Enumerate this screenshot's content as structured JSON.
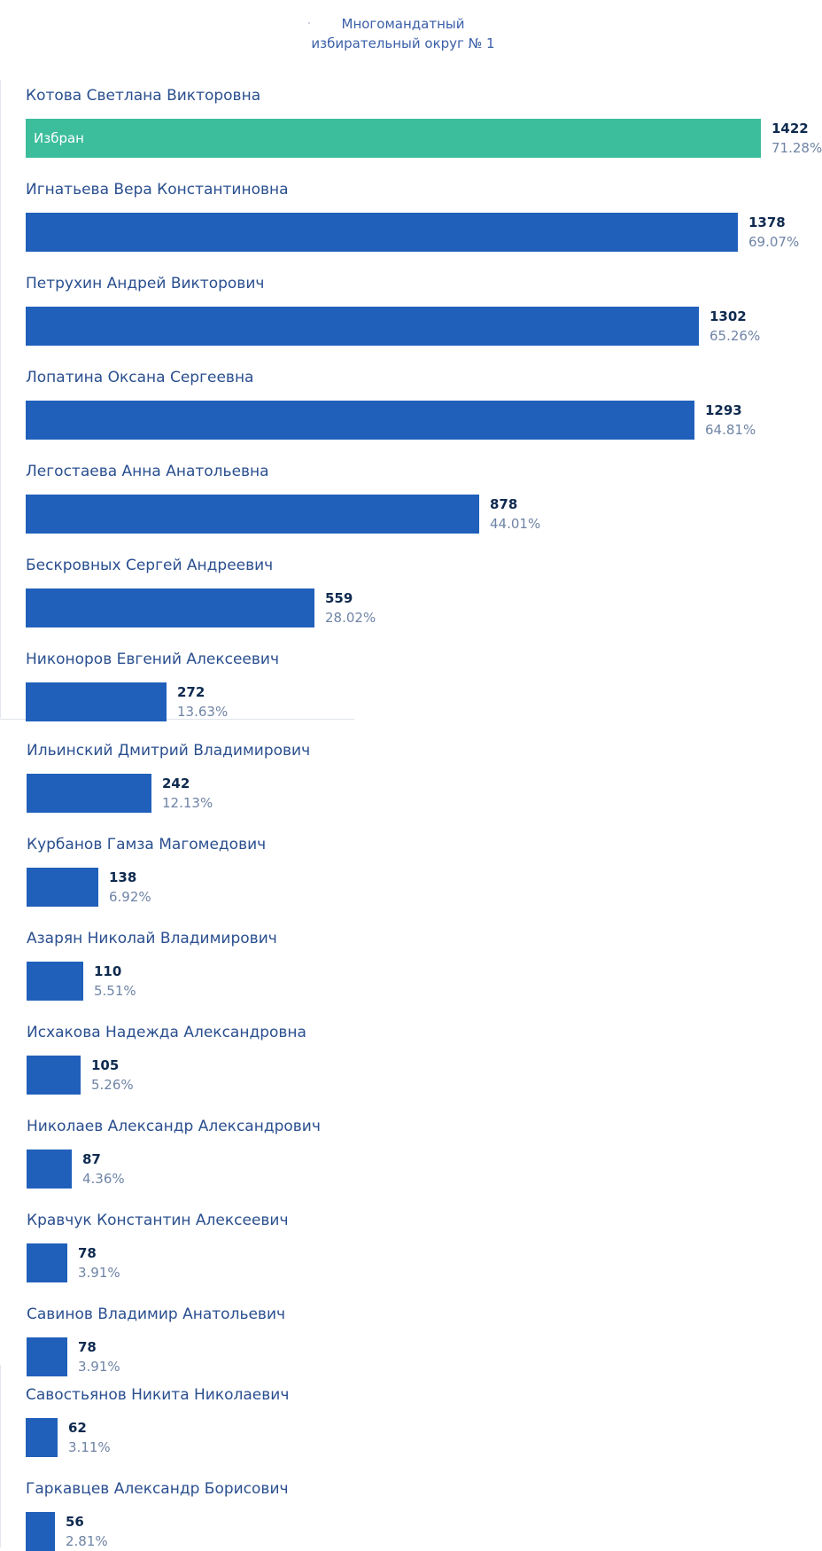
{
  "header": {
    "line1": "Многомандатный",
    "line2": "избирательный округ № 1"
  },
  "colors": {
    "bar": "#2060bb",
    "elected_bar": "#3cbd9b",
    "name_text": "#2a4f8f",
    "votes_text": "#0f2a4f",
    "percent_text": "#6f84a6"
  },
  "chart_data": {
    "type": "bar",
    "orientation": "horizontal",
    "title": "Многомандатный избирательный округ № 1",
    "xlim": [
      0,
      1422
    ],
    "grid": false,
    "candidates": [
      {
        "name": "Котова Светлана Викторовна",
        "votes": 1422,
        "percent": "71.28%",
        "status": "Избран"
      },
      {
        "name": "Игнатьева Вера Константиновна",
        "votes": 1378,
        "percent": "69.07%",
        "status": ""
      },
      {
        "name": "Петрухин Андрей Викторович",
        "votes": 1302,
        "percent": "65.26%",
        "status": ""
      },
      {
        "name": "Лопатина Оксана Сергеевна",
        "votes": 1293,
        "percent": "64.81%",
        "status": ""
      },
      {
        "name": "Легостаева Анна Анатольевна",
        "votes": 878,
        "percent": "44.01%",
        "status": ""
      },
      {
        "name": "Бескровных Сергей Андреевич",
        "votes": 559,
        "percent": "28.02%",
        "status": ""
      },
      {
        "name": "Никоноров Евгений Алексеевич",
        "votes": 272,
        "percent": "13.63%",
        "status": ""
      },
      {
        "name": "Ильинский Дмитрий Владимирович",
        "votes": 242,
        "percent": "12.13%",
        "status": ""
      },
      {
        "name": "Курбанов Гамза Магомедович",
        "votes": 138,
        "percent": "6.92%",
        "status": ""
      },
      {
        "name": "Азарян Николай Владимирович",
        "votes": 110,
        "percent": "5.51%",
        "status": ""
      },
      {
        "name": "Исхакова Надежда Александровна",
        "votes": 105,
        "percent": "5.26%",
        "status": ""
      },
      {
        "name": "Николаев Александр Александрович",
        "votes": 87,
        "percent": "4.36%",
        "status": ""
      },
      {
        "name": "Кравчук Константин Алексеевич",
        "votes": 78,
        "percent": "3.91%",
        "status": ""
      },
      {
        "name": "Савинов Владимир Анатольевич",
        "votes": 78,
        "percent": "3.91%",
        "status": ""
      },
      {
        "name": "Савостьянов Никита Николаевич",
        "votes": 62,
        "percent": "3.11%",
        "status": ""
      },
      {
        "name": "Гаркавцев Александр Борисович",
        "votes": 56,
        "percent": "2.81%",
        "status": ""
      }
    ]
  }
}
